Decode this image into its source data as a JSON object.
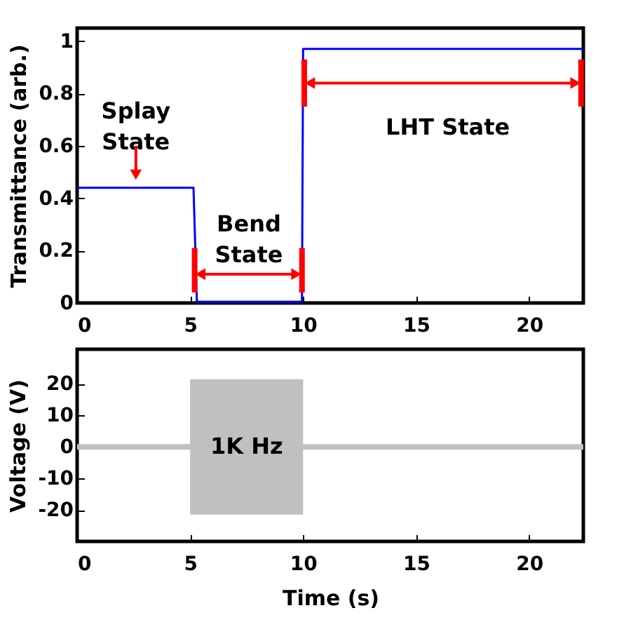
{
  "chart_data": [
    {
      "type": "line",
      "ylabel": "Transmittance (arb.)",
      "xlim": [
        0,
        22.4
      ],
      "xticks": [
        0,
        5,
        10,
        15,
        20
      ],
      "ylim": [
        0,
        1.05
      ],
      "yticks": [
        0,
        0.2,
        0.4,
        0.6,
        0.8,
        1
      ],
      "grid": false,
      "series": [
        {
          "color": "#0000ff",
          "x": [
            0,
            5.15,
            5.3,
            9.95,
            10.0,
            22.4
          ],
          "values": [
            0.44,
            0.44,
            0.005,
            0.005,
            0.97,
            0.97
          ]
        }
      ],
      "annotations": [
        "Splay\nState",
        {
          "text": "Bend\nState",
          "x": 7.6,
          "y": 0.005
        },
        "LHT State"
      ]
    },
    {
      "type": "line",
      "xlabel": "Time (s)",
      "ylabel": "Voltage (V)",
      "xlim": [
        0,
        22.4
      ],
      "xticks": [
        0,
        5,
        10,
        15,
        20
      ],
      "ylim": [
        -30,
        31
      ],
      "yticks": [
        -20,
        -10,
        0,
        10,
        20
      ],
      "grid": false,
      "series": [
        {
          "color": "#c0c0c0",
          "x": [
            0,
            5,
            10,
            22.4
          ],
          "values": [
            0,
            0,
            0,
            0
          ],
          "lower": [
            null,
            -21.5,
            -21.5,
            null
          ],
          "upper": [
            null,
            21.5,
            21.5,
            null
          ]
        }
      ],
      "annotations": [
        "1K Hz"
      ]
    }
  ]
}
